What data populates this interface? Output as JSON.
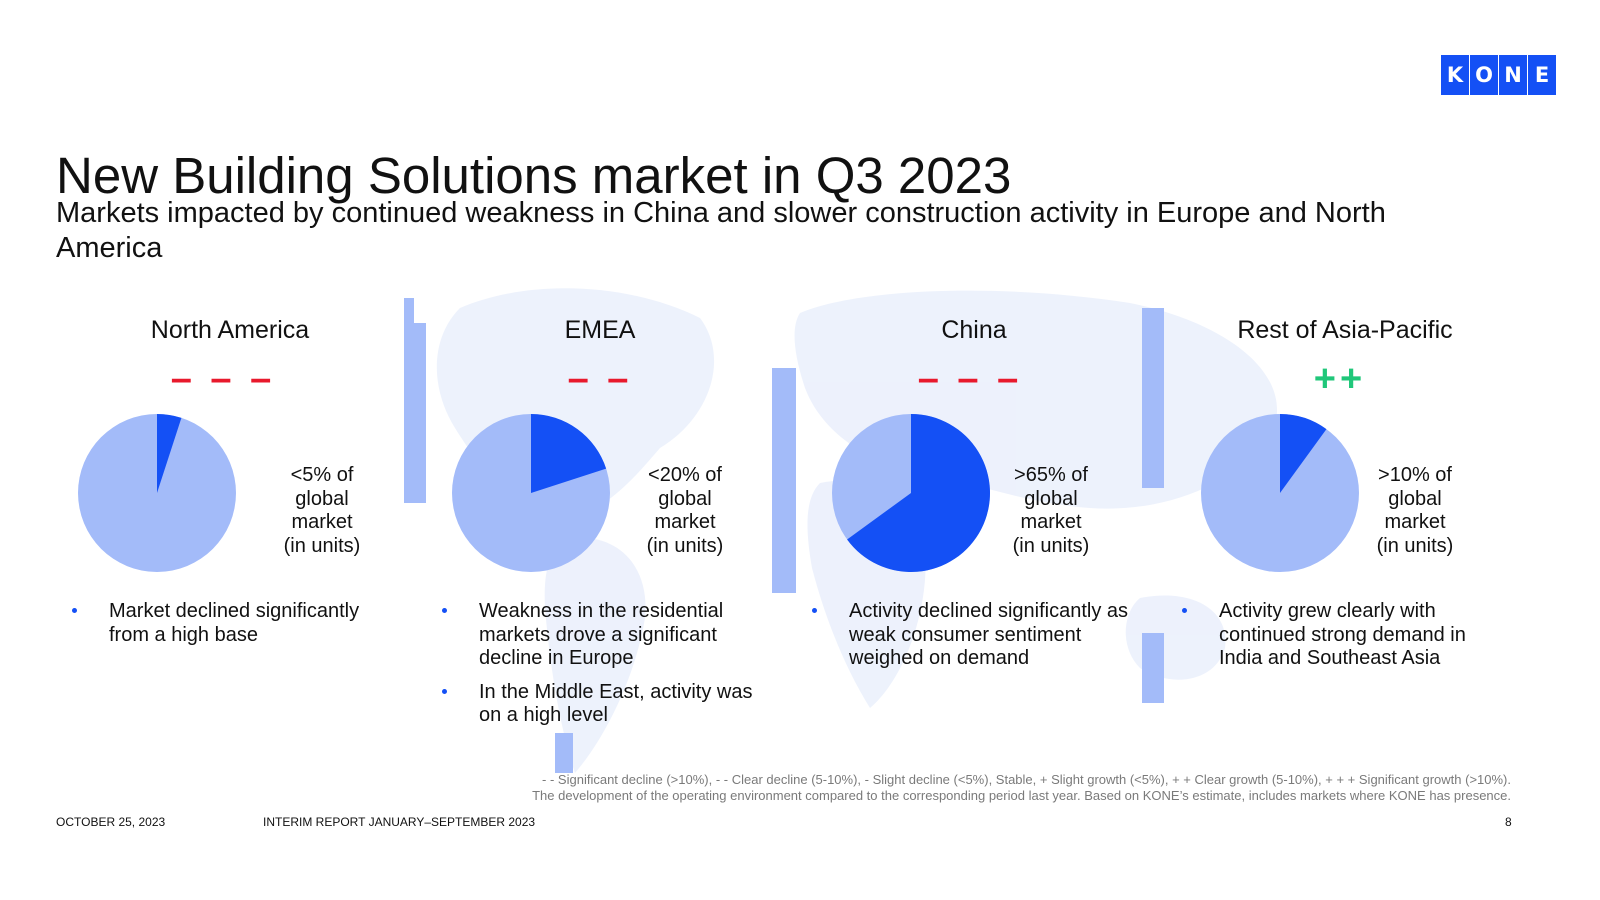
{
  "logo": {
    "letters": [
      "K",
      "O",
      "N",
      "E"
    ]
  },
  "title": "New Building Solutions market in Q3 2023",
  "subtitle": "Markets impacted by continued weakness in China and slower construction activity in Europe and North America",
  "colors": {
    "accent": "#1450f5",
    "pie_rest": "#a3bbf9",
    "decline": "#e8192c",
    "growth": "#20c77a"
  },
  "regions": [
    {
      "name": "North America",
      "trend": "– – –",
      "trend_type": "decline",
      "share_lines": [
        "<5% of",
        "global",
        "market",
        "(in units)"
      ],
      "share_value": 0.05,
      "bullets": [
        "Market declined significantly from a high base"
      ]
    },
    {
      "name": "EMEA",
      "trend": "– –",
      "trend_type": "decline",
      "share_lines": [
        "<20% of",
        "global",
        "market",
        "(in units)"
      ],
      "share_value": 0.2,
      "bullets": [
        "Weakness in the residential markets drove a significant decline in Europe",
        "In the Middle East, activity was on a high level"
      ]
    },
    {
      "name": "China",
      "trend": "– – –",
      "trend_type": "decline",
      "share_lines": [
        ">65% of",
        "global",
        "market",
        "(in units)"
      ],
      "share_value": 0.65,
      "bullets": [
        "Activity declined significantly as weak consumer sentiment weighed on demand"
      ]
    },
    {
      "name": "Rest of Asia-Pacific",
      "trend": "++",
      "trend_type": "growth",
      "share_lines": [
        ">10% of",
        "global",
        "market",
        "(in units)"
      ],
      "share_value": 0.1,
      "bullets": [
        "Activity grew clearly with continued strong demand in India and Southeast Asia"
      ]
    }
  ],
  "legend": {
    "line1": "- - Significant decline (>10%), - - Clear decline (5-10%), - Slight decline (<5%), Stable, + Slight growth (<5%), + + Clear growth (5-10%), + + + Significant growth (>10%).",
    "line2": "The development of the operating environment compared to the corresponding period last year. Based on KONE’s estimate, includes markets where KONE has presence."
  },
  "footer": {
    "date": "OCTOBER 25, 2023",
    "report": "INTERIM REPORT JANUARY–SEPTEMBER 2023",
    "page": "8"
  }
}
